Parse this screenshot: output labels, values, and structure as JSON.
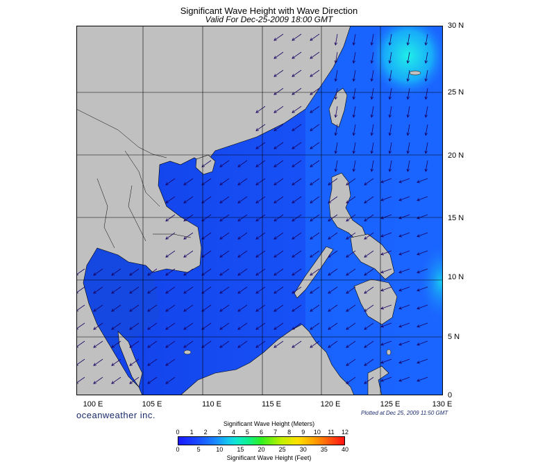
{
  "title": "Significant Wave Height with Wave Direction",
  "subtitle": "Valid For Dec-25-2009 18:00 GMT",
  "map": {
    "lat_labels": [
      "30 N",
      "25 N",
      "20 N",
      "15 N",
      "10 N",
      "5 N",
      "0"
    ],
    "lon_labels": [
      "100 E",
      "105 E",
      "110 E",
      "115 E",
      "120 E",
      "125 E",
      "130 E"
    ],
    "colors": {
      "land": "#c0c0c0",
      "deep": "#1030e8",
      "mid": "#1a6cff",
      "high": "#18e0f0",
      "outside": "#000030",
      "grid": "#000000",
      "arrow": "#180060"
    }
  },
  "footer": {
    "brand": "oceanweather inc.",
    "plotted": "Plotted at Dec 25, 2009 11:50 GMT"
  },
  "legend": {
    "meters_title": "Significant Wave Height (Meters)",
    "meters_ticks": [
      "0",
      "1",
      "2",
      "3",
      "4",
      "5",
      "6",
      "7",
      "8",
      "9",
      "10",
      "11",
      "12"
    ],
    "feet_title": "Significant Wave Height (Feet)",
    "feet_ticks": [
      "0",
      "5",
      "10",
      "15",
      "20",
      "25",
      "30",
      "35",
      "40"
    ]
  }
}
